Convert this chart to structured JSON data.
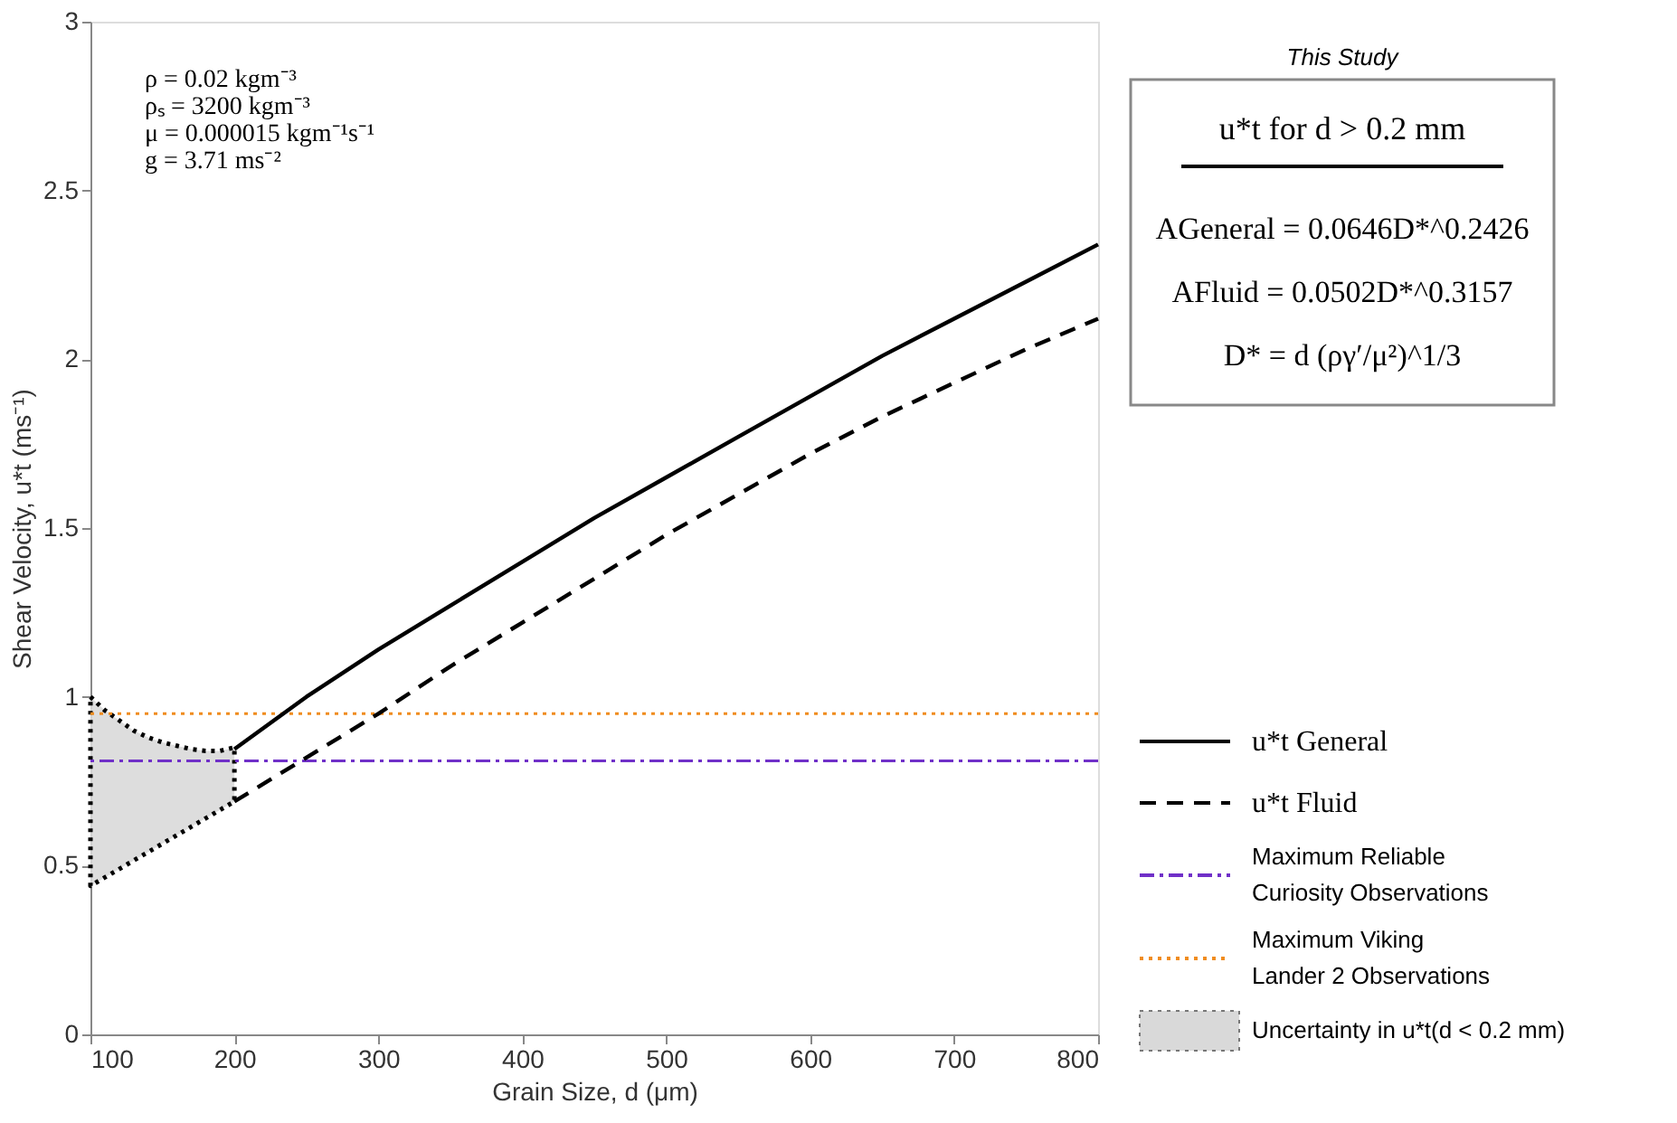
{
  "chart_data": {
    "type": "line",
    "xlabel": "Grain Size, d (μm)",
    "ylabel": "Shear Velocity, u*t (ms⁻¹)",
    "xlim": [
      100,
      800
    ],
    "ylim": [
      0,
      3
    ],
    "xticks": [
      100,
      200,
      300,
      400,
      500,
      600,
      700,
      800
    ],
    "yticks": [
      0,
      0.5,
      1,
      1.5,
      2,
      2.5,
      3
    ],
    "grid": false,
    "legend": "bottom right",
    "series": [
      {
        "name": "u*t General",
        "color": "#000000",
        "line_style": "solid",
        "x": [
          200,
          250,
          300,
          350,
          400,
          450,
          500,
          550,
          600,
          650,
          700,
          750,
          800
        ],
        "values": [
          0.845,
          1.0,
          1.14,
          1.27,
          1.4,
          1.53,
          1.65,
          1.77,
          1.89,
          2.01,
          2.12,
          2.23,
          2.34
        ]
      },
      {
        "name": "u*t Fluid",
        "color": "#000000",
        "line_style": "dashed",
        "x": [
          200,
          250,
          300,
          350,
          400,
          450,
          500,
          550,
          600,
          650,
          700,
          750,
          800
        ],
        "values": [
          0.69,
          0.82,
          0.95,
          1.09,
          1.22,
          1.35,
          1.48,
          1.6,
          1.72,
          1.83,
          1.93,
          2.03,
          2.12
        ]
      },
      {
        "name": "Uncertainty in u*t(d < 0.2 mm)",
        "type": "area",
        "color": "#d9d9d9",
        "line_style": "dotted",
        "x": [
          100,
          110,
          120,
          130,
          140,
          150,
          160,
          170,
          180,
          190,
          200
        ],
        "values": [
          null,
          null,
          null,
          null,
          null,
          null,
          null,
          null,
          null,
          null,
          null
        ],
        "upper": [
          1.0,
          0.96,
          0.93,
          0.9,
          0.88,
          0.865,
          0.855,
          0.845,
          0.84,
          0.84,
          0.85
        ],
        "lower": [
          0.44,
          0.465,
          0.49,
          0.515,
          0.54,
          0.565,
          0.59,
          0.615,
          0.64,
          0.665,
          0.69
        ]
      }
    ],
    "ref_lines": [
      {
        "axis": "y",
        "value": 0.81,
        "label": "Maximum Reliable Curiosity Observations",
        "color": "#7030c8",
        "line_style": "dashdot"
      },
      {
        "axis": "y",
        "value": 0.95,
        "label": "Maximum Viking Lander 2 Observations",
        "color": "#f08c1e",
        "line_style": "dotted"
      }
    ],
    "annotations": [
      "ρ = 0.02 kgm⁻³",
      "ρₛ = 3200 kgm⁻³",
      "μ = 0.000015 kgm⁻¹s⁻¹",
      "g = 3.71 ms⁻²",
      "This Study",
      "u*t for d > 0.2 mm",
      "AGeneral = 0.0646D*^0.2426",
      "AFluid = 0.0502D*^0.3157",
      "D* = d (ργ′/μ²)^1/3"
    ]
  }
}
